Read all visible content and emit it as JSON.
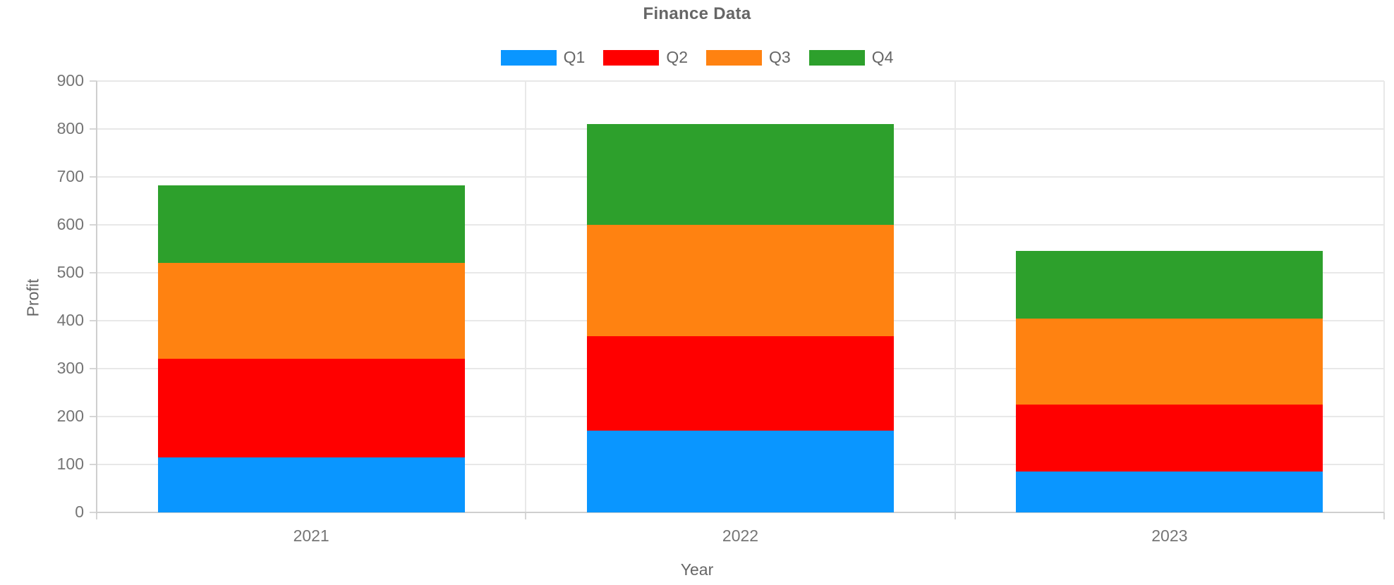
{
  "chart_data": {
    "type": "bar",
    "stacked": true,
    "title": "Finance Data",
    "xlabel": "Year",
    "ylabel": "Profit",
    "categories": [
      "2021",
      "2022",
      "2023"
    ],
    "series": [
      {
        "name": "Q1",
        "color": "#0A96FF",
        "values": [
          115,
          170,
          85
        ]
      },
      {
        "name": "Q2",
        "color": "#FF0000",
        "values": [
          205,
          198,
          140
        ]
      },
      {
        "name": "Q3",
        "color": "#FF8211",
        "values": [
          200,
          232,
          180
        ]
      },
      {
        "name": "Q4",
        "color": "#2DA02C",
        "values": [
          162,
          210,
          140
        ]
      }
    ],
    "stack_totals": [
      682,
      810,
      545
    ],
    "ylim": [
      0,
      900
    ],
    "yticks": [
      0,
      100,
      200,
      300,
      400,
      500,
      600,
      700,
      800,
      900
    ],
    "grid": true,
    "legend_position": "top"
  }
}
